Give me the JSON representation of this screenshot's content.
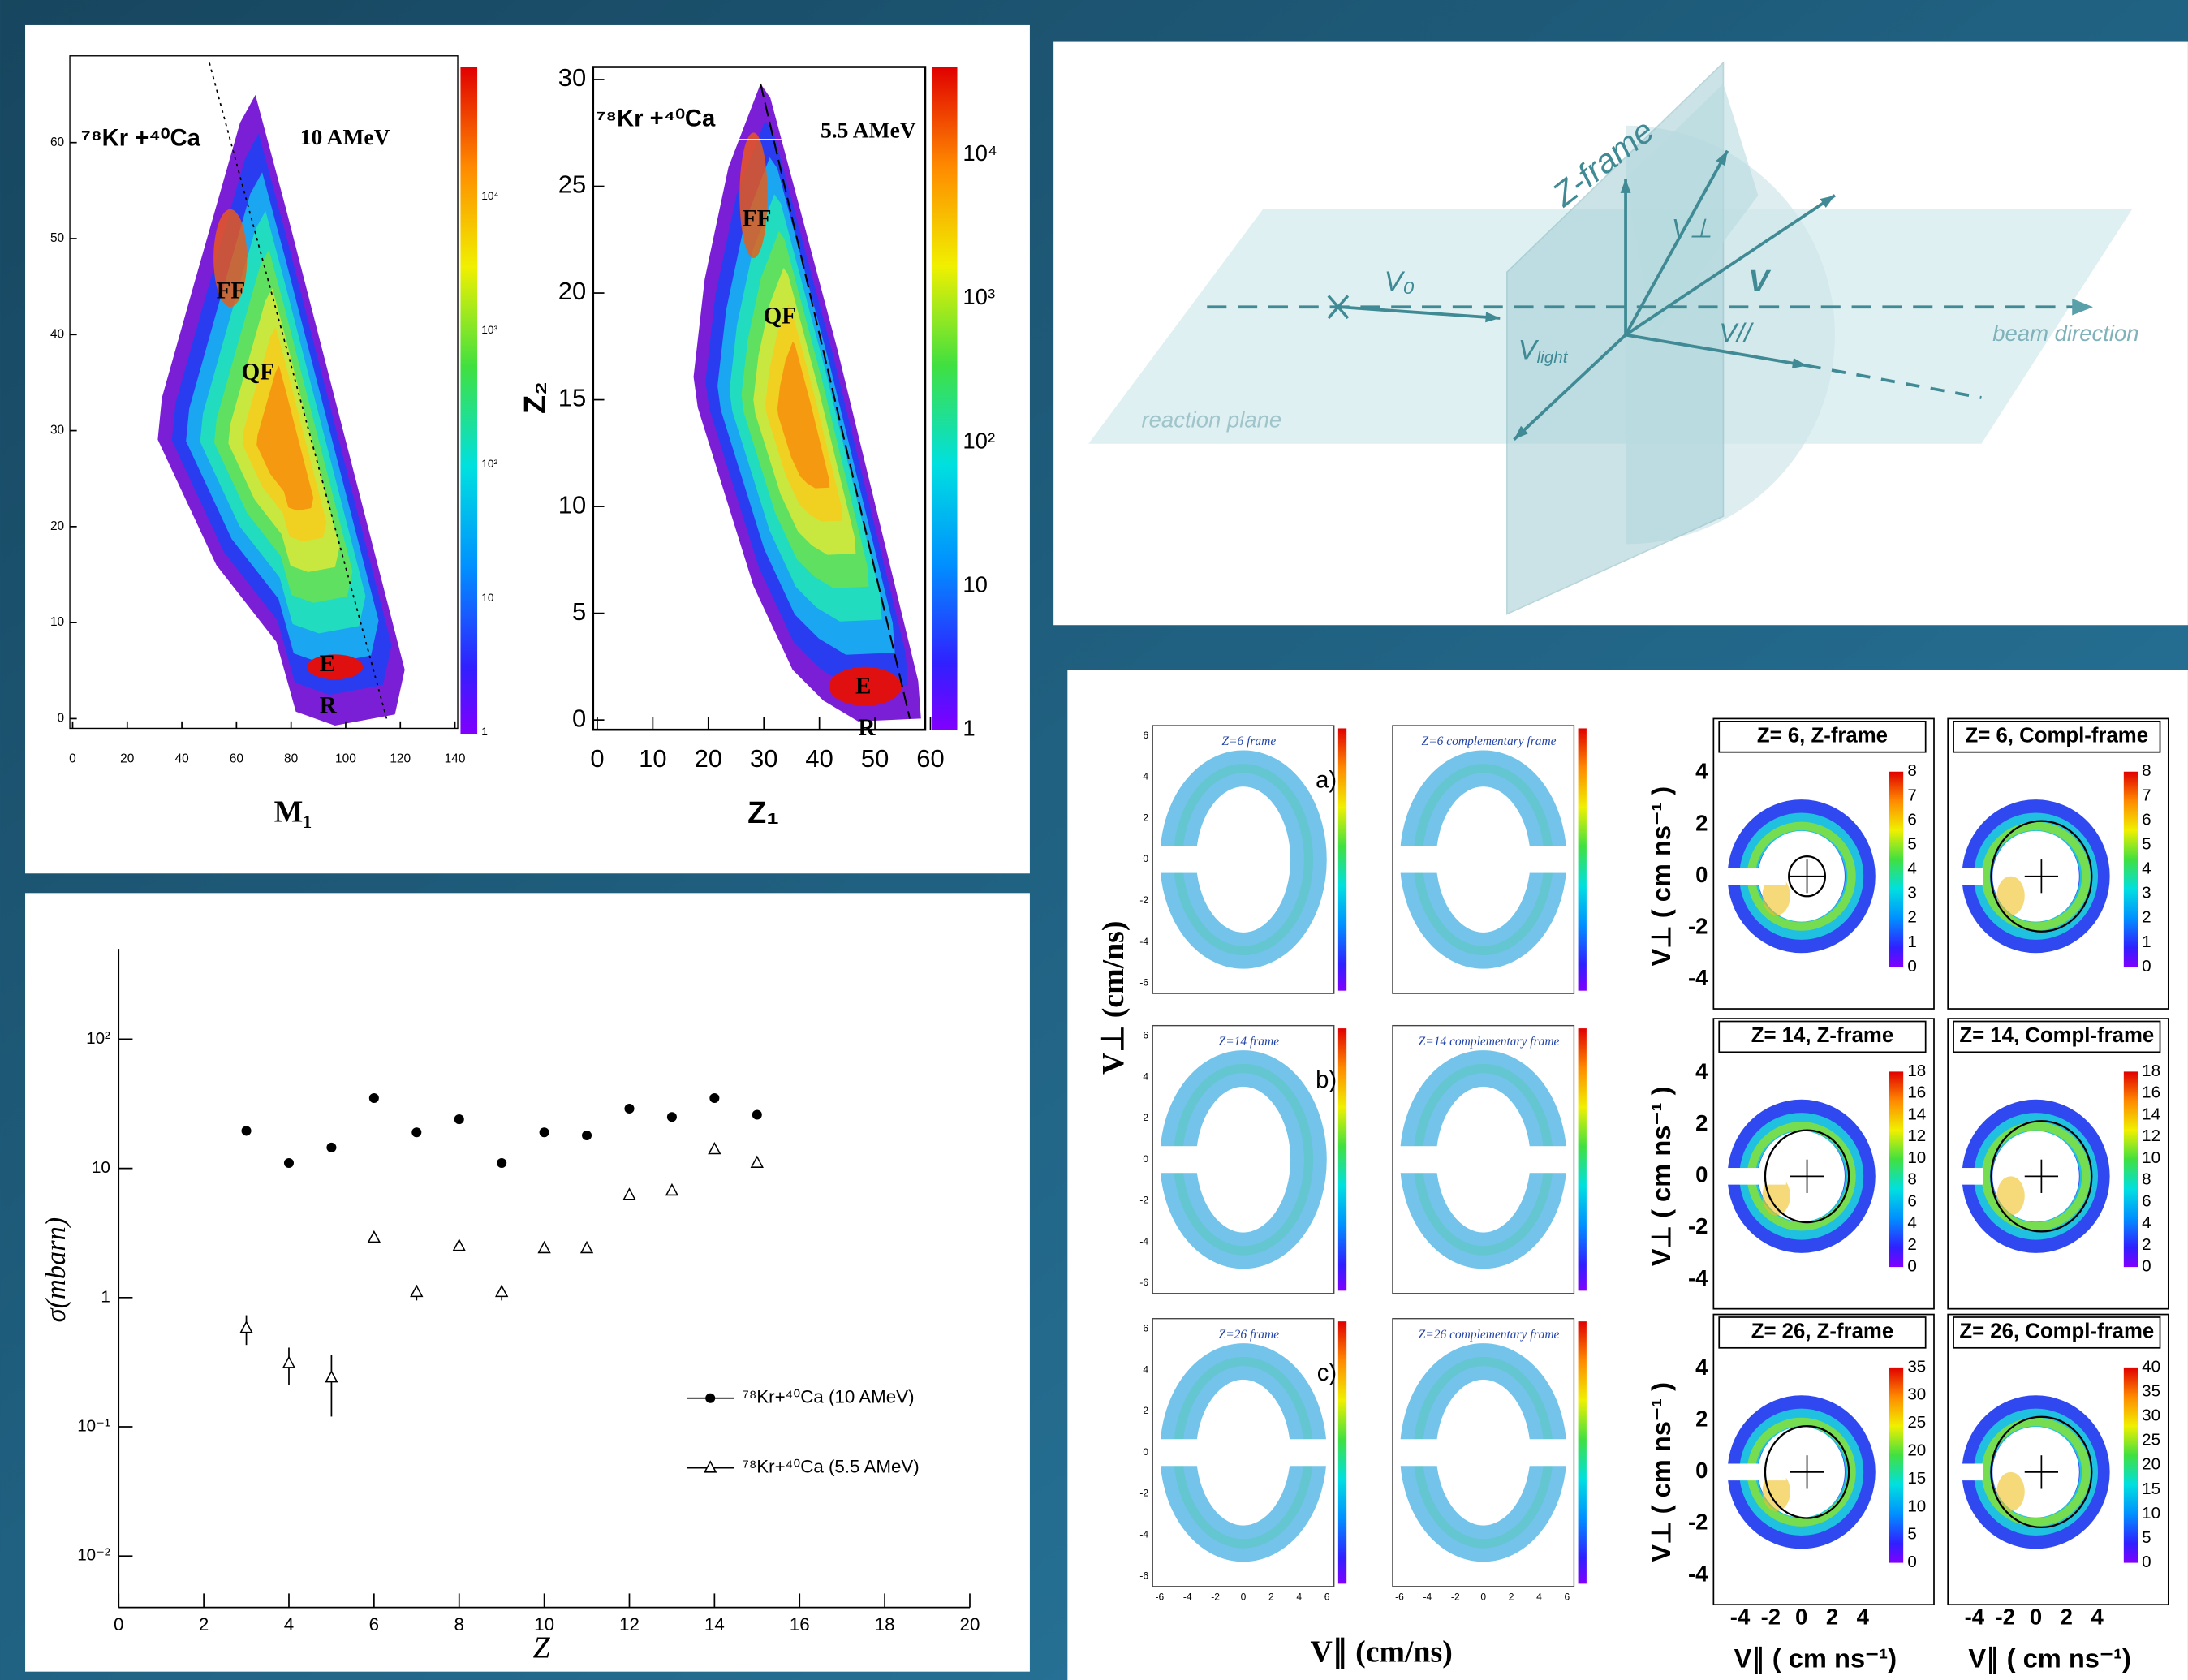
{
  "chart_data": {
    "type": "scatter",
    "x_label": "Z",
    "y_label": "σ(mbarn)",
    "log_y": true,
    "xlim": [
      0,
      20
    ],
    "xticks": [
      0,
      2,
      4,
      6,
      8,
      10,
      12,
      14,
      16,
      18,
      20
    ],
    "ylim": [
      0.004,
      500
    ],
    "yticks": [
      {
        "value": 0.01,
        "label": "10⁻²"
      },
      {
        "value": 0.1,
        "label": "10⁻¹"
      },
      1,
      10,
      {
        "value": 100,
        "label": "10²"
      }
    ],
    "legend_position": "lower right",
    "x": [
      3,
      4,
      5,
      6,
      7,
      8,
      9,
      10,
      11,
      12,
      13,
      14,
      15
    ],
    "series": [
      {
        "name": "⁷⁸Kr+⁴⁰Ca (10 AMeV)",
        "color": "#000000",
        "marker": "circle",
        "values": [
          19.5,
          11,
          14.5,
          35,
          19,
          24,
          11,
          19,
          18,
          29,
          25,
          35,
          26
        ]
      },
      {
        "name": "⁷⁸Kr+⁴⁰Ca (5.5 AMeV)",
        "color": "#000000",
        "marker": "triangle",
        "values": [
          0.58,
          0.31,
          0.24,
          2.9,
          1.1,
          2.5,
          1.1,
          2.4,
          2.4,
          6.2,
          6.7,
          14,
          11
        ],
        "errors": [
          0.15,
          0.1,
          0.12,
          null,
          0.15,
          null,
          0.15,
          null,
          null,
          null,
          null,
          null,
          null
        ]
      }
    ]
  },
  "mass_panel": {
    "left": {
      "system": "⁷⁸Kr +⁴⁰Ca",
      "energy": "10 AMeV",
      "x_label": "M₁",
      "regions": [
        "FF",
        "QF",
        "E",
        "R"
      ],
      "xticks": [
        0,
        20,
        40,
        60,
        80,
        100,
        120,
        140
      ],
      "yticks": [
        0,
        10,
        20,
        30,
        40,
        50,
        60
      ],
      "colorbar": [
        "1",
        "10",
        "10²",
        "10³",
        "10⁴"
      ]
    },
    "right": {
      "system": "⁷⁸Kr +⁴⁰Ca",
      "energy": "5.5 AMeV",
      "x_label": "Z₁",
      "y_label": "Z₂",
      "regions": [
        "FF",
        "QF",
        "E",
        "R"
      ],
      "xticks": [
        0,
        10,
        20,
        30,
        40,
        50,
        60
      ],
      "yticks": [
        0,
        5,
        10,
        15,
        20,
        25,
        30
      ],
      "colorbar": [
        "1",
        "10",
        "10²",
        "10³",
        "10⁴"
      ]
    }
  },
  "frame_diagram": {
    "z_frame": "Z-frame",
    "v0": "V₀",
    "v_perp": "V⊥",
    "v": "V",
    "v_light": {
      "symbol": "V",
      "subscript": "light"
    },
    "v_par": "V//",
    "beam": "beam direction",
    "plane": "reaction plane"
  },
  "velocity_panel": {
    "left": {
      "y_label": "V⊥ (cm/ns)",
      "x_label": "V∥ (cm/ns)",
      "xticks": [
        -6,
        -4,
        -2,
        0,
        2,
        4,
        6
      ],
      "yticks": [
        -6,
        -4,
        -2,
        0,
        2,
        4,
        6
      ],
      "rows": [
        {
          "tag": "a)",
          "frames": [
            "Z=6 frame",
            "Z=6 complementary frame"
          ]
        },
        {
          "tag": "b)",
          "frames": [
            "Z=14 frame",
            "Z=14 complementary frame"
          ]
        },
        {
          "tag": "c)",
          "frames": [
            "Z=26 frame",
            "Z=26 complementary frame"
          ]
        }
      ]
    },
    "right": {
      "y_label": "V⊥ ( cm ns⁻¹ )",
      "x_label": "V∥ ( cm ns⁻¹)",
      "xticks": [
        -4,
        -2,
        0,
        2,
        4
      ],
      "yticks": [
        4,
        2,
        0,
        -2,
        -4
      ],
      "rows": [
        {
          "titles": [
            "Z= 6, Z-frame",
            "Z= 6, Compl-frame"
          ],
          "scales": [
            [
              0,
              1,
              2,
              3,
              4,
              5,
              6,
              7,
              8
            ],
            [
              0,
              1,
              2,
              3,
              4,
              5,
              6,
              7,
              8
            ]
          ]
        },
        {
          "titles": [
            "Z= 14, Z-frame",
            "Z= 14, Compl-frame"
          ],
          "scales": [
            [
              0,
              2,
              4,
              6,
              8,
              10,
              12,
              14,
              16,
              18
            ],
            [
              0,
              2,
              4,
              6,
              8,
              10,
              12,
              14,
              16,
              18
            ]
          ]
        },
        {
          "titles": [
            "Z= 26, Z-frame",
            "Z= 26, Compl-frame"
          ],
          "scales": [
            [
              0,
              5,
              10,
              15,
              20,
              25,
              30,
              35
            ],
            [
              0,
              5,
              10,
              15,
              20,
              25,
              30,
              35,
              40
            ]
          ]
        }
      ]
    }
  }
}
